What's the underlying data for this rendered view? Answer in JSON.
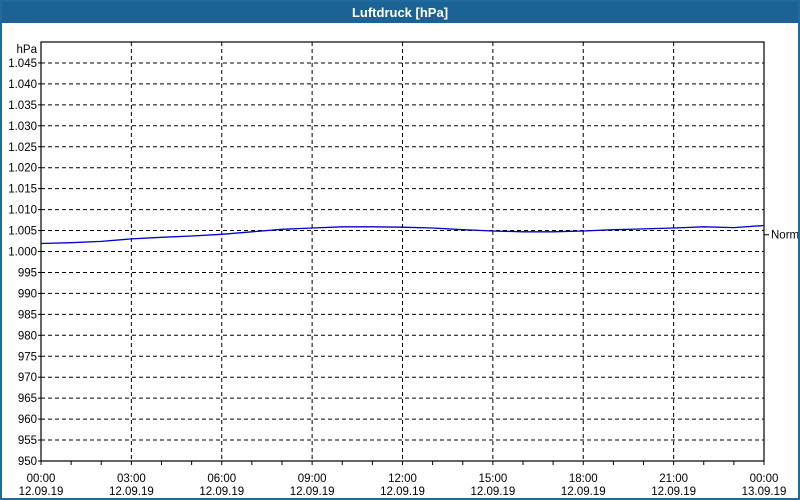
{
  "window": {
    "title": "Luftdruck [hPa]"
  },
  "colors": {
    "titlebar_bg": "#1c6395",
    "titlebar_text": "#ffffff",
    "window_border": "#1f6ba0",
    "plot_bg": "#ffffff",
    "grid": "#000000",
    "axis": "#000000",
    "tick_text": "#000000",
    "line": "#0000cc"
  },
  "chart_data": {
    "type": "line",
    "title": "Luftdruck [hPa]",
    "unit_label": "hPa",
    "ylim": [
      950,
      1050
    ],
    "ytick_step": 5,
    "yticks": [
      {
        "value": 1045,
        "label": "1.045"
      },
      {
        "value": 1040,
        "label": "1.040"
      },
      {
        "value": 1035,
        "label": "1.035"
      },
      {
        "value": 1030,
        "label": "1.030"
      },
      {
        "value": 1025,
        "label": "1.025"
      },
      {
        "value": 1020,
        "label": "1.020"
      },
      {
        "value": 1015,
        "label": "1.015"
      },
      {
        "value": 1010,
        "label": "1.010"
      },
      {
        "value": 1005,
        "label": "1.005"
      },
      {
        "value": 1000,
        "label": "1.000"
      },
      {
        "value": 995,
        "label": "995"
      },
      {
        "value": 990,
        "label": "990"
      },
      {
        "value": 985,
        "label": "985"
      },
      {
        "value": 980,
        "label": "980"
      },
      {
        "value": 975,
        "label": "975"
      },
      {
        "value": 970,
        "label": "970"
      },
      {
        "value": 965,
        "label": "965"
      },
      {
        "value": 960,
        "label": "960"
      },
      {
        "value": 955,
        "label": "955"
      },
      {
        "value": 950,
        "label": "950"
      }
    ],
    "xlim_hours": [
      0,
      24
    ],
    "x_minor_tick_every_hours": 1,
    "x_major_tick_every_hours": 3,
    "xticks": [
      {
        "hour": 0,
        "time": "00:00",
        "date": "12.09.19"
      },
      {
        "hour": 3,
        "time": "03:00",
        "date": "12.09.19"
      },
      {
        "hour": 6,
        "time": "06:00",
        "date": "12.09.19"
      },
      {
        "hour": 9,
        "time": "09:00",
        "date": "12.09.19"
      },
      {
        "hour": 12,
        "time": "12:00",
        "date": "12.09.19"
      },
      {
        "hour": 15,
        "time": "15:00",
        "date": "12.09.19"
      },
      {
        "hour": 18,
        "time": "18:00",
        "date": "12.09.19"
      },
      {
        "hour": 21,
        "time": "21:00",
        "date": "12.09.19"
      },
      {
        "hour": 24,
        "time": "00:00",
        "date": "13.09.19"
      }
    ],
    "grid_style": "dashed",
    "series": [
      {
        "name": "Luftdruck",
        "x_hours": [
          0,
          1,
          2,
          3,
          4,
          5,
          6,
          7,
          8,
          9,
          10,
          11,
          12,
          13,
          14,
          15,
          16,
          17,
          18,
          19,
          20,
          21,
          22,
          23,
          24
        ],
        "values": [
          1001.9,
          1002.1,
          1002.4,
          1003.0,
          1003.4,
          1003.7,
          1004.1,
          1004.7,
          1005.3,
          1005.6,
          1005.9,
          1005.9,
          1005.8,
          1005.6,
          1005.2,
          1004.9,
          1004.7,
          1004.7,
          1004.9,
          1005.2,
          1005.4,
          1005.6,
          1005.9,
          1005.7,
          1006.2
        ]
      }
    ],
    "right_axis_marker": {
      "label": "Normal",
      "value": 1004
    }
  }
}
